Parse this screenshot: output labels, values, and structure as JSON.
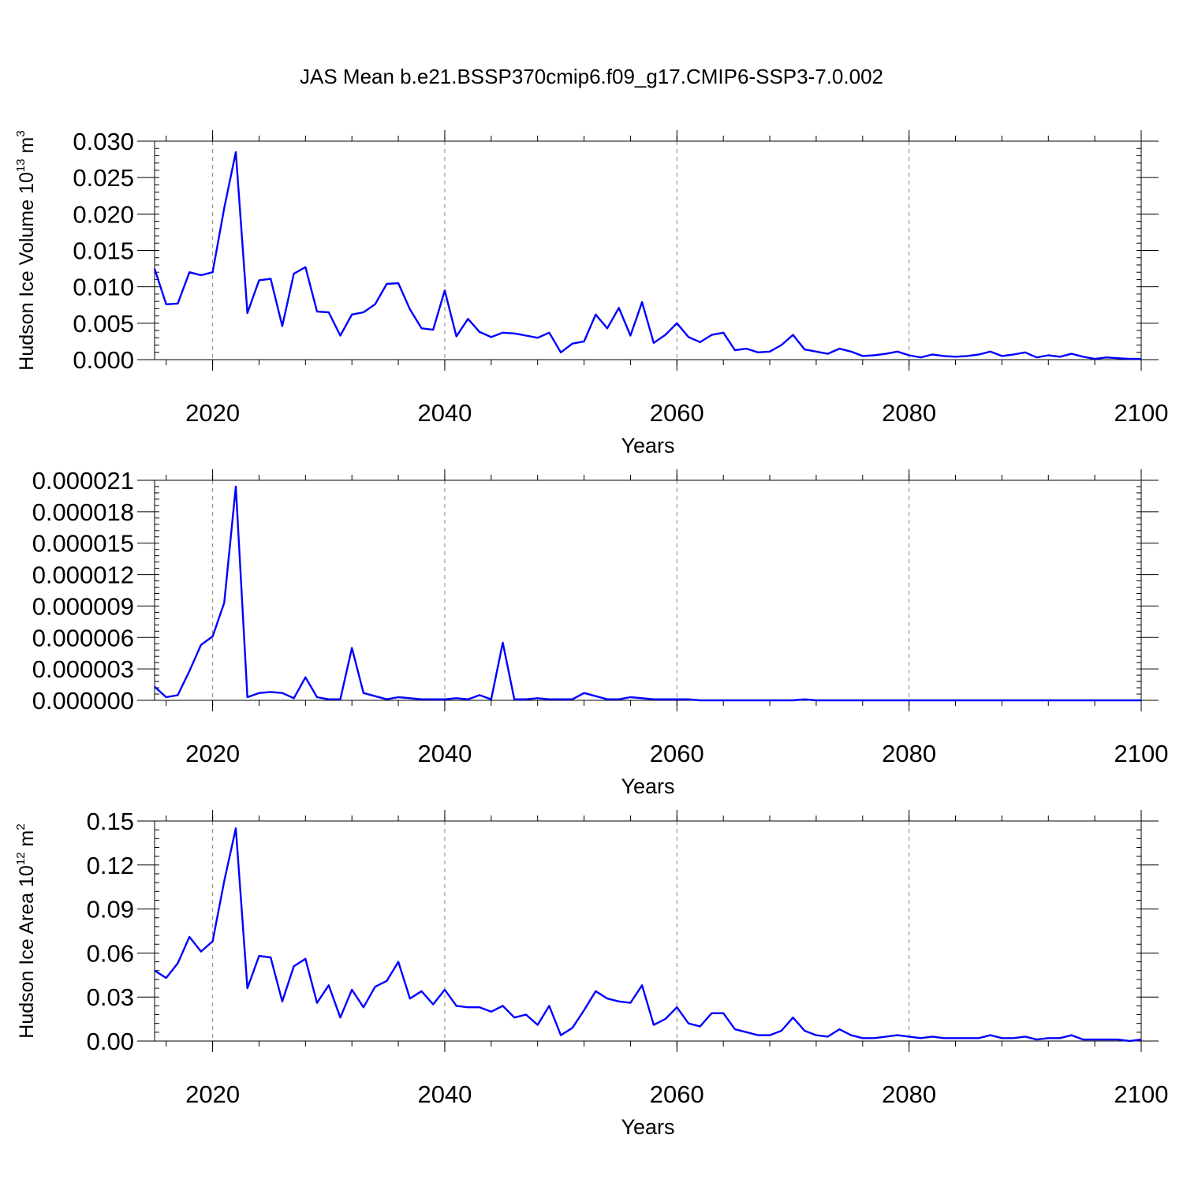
{
  "figure": {
    "title": "JAS Mean b.e21.BSSP370cmip6.f09_g17.CMIP6-SSP3-7.0.002"
  },
  "chart_data": [
    {
      "type": "line",
      "ylabel": {
        "text": "Hudson Ice Volume 10",
        "exponent": "13",
        "unit": "m",
        "unit_exponent": "3"
      },
      "xlabel": "Years",
      "xlim": [
        2015,
        2100
      ],
      "ylim": [
        0,
        0.03
      ],
      "xticks": [
        2020,
        2040,
        2060,
        2080,
        2100
      ],
      "xtick_labels": [
        "2020",
        "2040",
        "2060",
        "2080",
        "2100"
      ],
      "yticks": [
        0,
        0.005,
        0.01,
        0.015,
        0.02,
        0.025,
        0.03
      ],
      "ytick_labels": [
        "0.000",
        "0.005",
        "0.010",
        "0.015",
        "0.020",
        "0.025",
        "0.030"
      ],
      "yminor_step": 0.001,
      "xgrid": "dashed at major ticks",
      "line_color": "#0000ff",
      "x": [
        2015,
        2016,
        2017,
        2018,
        2019,
        2020,
        2021,
        2022,
        2023,
        2024,
        2025,
        2026,
        2027,
        2028,
        2029,
        2030,
        2031,
        2032,
        2033,
        2034,
        2035,
        2036,
        2037,
        2038,
        2039,
        2040,
        2041,
        2042,
        2043,
        2044,
        2045,
        2046,
        2047,
        2048,
        2049,
        2050,
        2051,
        2052,
        2053,
        2054,
        2055,
        2056,
        2057,
        2058,
        2059,
        2060,
        2061,
        2062,
        2063,
        2064,
        2065,
        2066,
        2067,
        2068,
        2069,
        2070,
        2071,
        2072,
        2073,
        2074,
        2075,
        2076,
        2077,
        2078,
        2079,
        2080,
        2081,
        2082,
        2083,
        2084,
        2085,
        2086,
        2087,
        2088,
        2089,
        2090,
        2091,
        2092,
        2093,
        2094,
        2095,
        2096,
        2097,
        2098,
        2099,
        2100
      ],
      "values": [
        0.0125,
        0.0076,
        0.0077,
        0.012,
        0.0116,
        0.012,
        0.0208,
        0.0285,
        0.0064,
        0.0109,
        0.0111,
        0.0046,
        0.0118,
        0.0127,
        0.0066,
        0.0065,
        0.0033,
        0.0062,
        0.0065,
        0.0076,
        0.0104,
        0.0105,
        0.0069,
        0.0043,
        0.0041,
        0.0095,
        0.0032,
        0.0056,
        0.0038,
        0.0031,
        0.0037,
        0.0036,
        0.0033,
        0.003,
        0.0037,
        0.001,
        0.0022,
        0.0025,
        0.0062,
        0.0043,
        0.0071,
        0.0033,
        0.0079,
        0.0023,
        0.0034,
        0.005,
        0.0031,
        0.0024,
        0.0034,
        0.0037,
        0.0013,
        0.0015,
        0.001,
        0.0011,
        0.002,
        0.0034,
        0.0014,
        0.0011,
        0.0008,
        0.0015,
        0.0011,
        0.0005,
        0.0006,
        0.0008,
        0.0011,
        0.0006,
        0.0003,
        0.0007,
        0.0005,
        0.0004,
        0.0005,
        0.0007,
        0.0011,
        0.0005,
        0.0007,
        0.001,
        0.0003,
        0.0006,
        0.0004,
        0.0008,
        0.0004,
        0.0001,
        0.0003,
        0.0002,
        0.0001,
        0.0001
      ]
    },
    {
      "type": "line",
      "ylabel": {
        "text": "",
        "exponent": "",
        "unit": "",
        "unit_exponent": ""
      },
      "xlabel": "Years",
      "xlim": [
        2015,
        2100
      ],
      "ylim": [
        0,
        2.1e-05
      ],
      "xticks": [
        2020,
        2040,
        2060,
        2080,
        2100
      ],
      "xtick_labels": [
        "2020",
        "2040",
        "2060",
        "2080",
        "2100"
      ],
      "yticks": [
        0,
        3e-06,
        6e-06,
        9e-06,
        1.2e-05,
        1.5e-05,
        1.8e-05,
        2.1e-05
      ],
      "ytick_labels": [
        "0.000000",
        "0.000003",
        "0.000006",
        "0.000009",
        "0.000012",
        "0.000015",
        "0.000018",
        "0.000021"
      ],
      "yminor_step": 6e-07,
      "xgrid": "dashed at major ticks",
      "line_color": "#0000ff",
      "x": [
        2015,
        2016,
        2017,
        2018,
        2019,
        2020,
        2021,
        2022,
        2023,
        2024,
        2025,
        2026,
        2027,
        2028,
        2029,
        2030,
        2031,
        2032,
        2033,
        2034,
        2035,
        2036,
        2037,
        2038,
        2039,
        2040,
        2041,
        2042,
        2043,
        2044,
        2045,
        2046,
        2047,
        2048,
        2049,
        2050,
        2051,
        2052,
        2053,
        2054,
        2055,
        2056,
        2057,
        2058,
        2059,
        2060,
        2061,
        2062,
        2063,
        2064,
        2065,
        2066,
        2067,
        2068,
        2069,
        2070,
        2071,
        2072,
        2073,
        2074,
        2075,
        2076,
        2077,
        2078,
        2079,
        2080,
        2081,
        2082,
        2083,
        2084,
        2085,
        2086,
        2087,
        2088,
        2089,
        2090,
        2091,
        2092,
        2093,
        2094,
        2095,
        2096,
        2097,
        2098,
        2099,
        2100
      ],
      "values": [
        1.3e-06,
        3e-07,
        5e-07,
        2.8e-06,
        5.3e-06,
        6.1e-06,
        9.3e-06,
        2.04e-05,
        3e-07,
        7e-07,
        8e-07,
        7e-07,
        2e-07,
        2.2e-06,
        3e-07,
        1e-07,
        1e-07,
        5e-06,
        7e-07,
        4e-07,
        1e-07,
        3e-07,
        2e-07,
        1e-07,
        1e-07,
        1e-07,
        2e-07,
        1e-07,
        5e-07,
        1e-07,
        5.5e-06,
        1e-07,
        1e-07,
        2e-07,
        1e-07,
        1e-07,
        1e-07,
        7e-07,
        4e-07,
        1e-07,
        1e-07,
        3e-07,
        2e-07,
        1e-07,
        1e-07,
        1e-07,
        1e-07,
        0.0,
        0.0,
        0.0,
        0.0,
        0.0,
        0.0,
        0.0,
        0.0,
        0.0,
        1e-07,
        0.0,
        0.0,
        0.0,
        0.0,
        0.0,
        0.0,
        0.0,
        0.0,
        0.0,
        0.0,
        0.0,
        0.0,
        0.0,
        0.0,
        0.0,
        0.0,
        0.0,
        0.0,
        0.0,
        0.0,
        0.0,
        0.0,
        0.0,
        0.0,
        0.0,
        0.0,
        0.0,
        0.0,
        0.0
      ]
    },
    {
      "type": "line",
      "ylabel": {
        "text": "Hudson Ice Area 10",
        "exponent": "12",
        "unit": "m",
        "unit_exponent": "2"
      },
      "xlabel": "Years",
      "xlim": [
        2015,
        2100
      ],
      "ylim": [
        0,
        0.15
      ],
      "xticks": [
        2020,
        2040,
        2060,
        2080,
        2100
      ],
      "xtick_labels": [
        "2020",
        "2040",
        "2060",
        "2080",
        "2100"
      ],
      "yticks": [
        0,
        0.03,
        0.06,
        0.09,
        0.12,
        0.15
      ],
      "ytick_labels": [
        "0.00",
        "0.03",
        "0.06",
        "0.09",
        "0.12",
        "0.15"
      ],
      "yminor_step": 0.006,
      "xgrid": "dashed at major ticks",
      "line_color": "#0000ff",
      "x": [
        2015,
        2016,
        2017,
        2018,
        2019,
        2020,
        2021,
        2022,
        2023,
        2024,
        2025,
        2026,
        2027,
        2028,
        2029,
        2030,
        2031,
        2032,
        2033,
        2034,
        2035,
        2036,
        2037,
        2038,
        2039,
        2040,
        2041,
        2042,
        2043,
        2044,
        2045,
        2046,
        2047,
        2048,
        2049,
        2050,
        2051,
        2052,
        2053,
        2054,
        2055,
        2056,
        2057,
        2058,
        2059,
        2060,
        2061,
        2062,
        2063,
        2064,
        2065,
        2066,
        2067,
        2068,
        2069,
        2070,
        2071,
        2072,
        2073,
        2074,
        2075,
        2076,
        2077,
        2078,
        2079,
        2080,
        2081,
        2082,
        2083,
        2084,
        2085,
        2086,
        2087,
        2088,
        2089,
        2090,
        2091,
        2092,
        2093,
        2094,
        2095,
        2096,
        2097,
        2098,
        2099,
        2100
      ],
      "values": [
        0.048,
        0.043,
        0.053,
        0.071,
        0.061,
        0.068,
        0.109,
        0.145,
        0.036,
        0.058,
        0.057,
        0.027,
        0.051,
        0.056,
        0.026,
        0.038,
        0.016,
        0.035,
        0.023,
        0.037,
        0.041,
        0.054,
        0.029,
        0.034,
        0.025,
        0.035,
        0.024,
        0.023,
        0.023,
        0.02,
        0.024,
        0.016,
        0.018,
        0.011,
        0.024,
        0.004,
        0.009,
        0.021,
        0.034,
        0.029,
        0.027,
        0.026,
        0.038,
        0.011,
        0.015,
        0.023,
        0.012,
        0.01,
        0.019,
        0.019,
        0.008,
        0.006,
        0.004,
        0.004,
        0.007,
        0.016,
        0.007,
        0.004,
        0.003,
        0.008,
        0.004,
        0.002,
        0.002,
        0.003,
        0.004,
        0.003,
        0.002,
        0.003,
        0.002,
        0.002,
        0.002,
        0.002,
        0.004,
        0.002,
        0.002,
        0.003,
        0.001,
        0.002,
        0.002,
        0.004,
        0.001,
        0.001,
        0.001,
        0.001,
        0.0,
        0.001
      ]
    }
  ]
}
